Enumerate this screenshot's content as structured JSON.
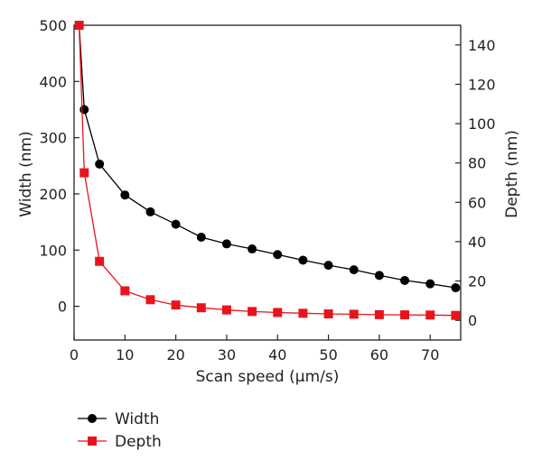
{
  "chart_data": {
    "type": "line",
    "xlabel": "Scan speed (μm/s)",
    "ylabel_left": "Width (nm)",
    "ylabel_right": "Depth (nm)",
    "xlim": [
      0,
      76
    ],
    "ylim_left": [
      -60,
      500
    ],
    "ylim_right": [
      -10,
      150
    ],
    "x_ticks": [
      0,
      10,
      20,
      30,
      40,
      50,
      60,
      70
    ],
    "y_left_ticks": [
      0,
      100,
      200,
      300,
      400,
      500
    ],
    "y_right_ticks": [
      0,
      20,
      40,
      60,
      80,
      100,
      120,
      140
    ],
    "grid": false,
    "legend_position": "below-left",
    "x": [
      1,
      2,
      5,
      10,
      15,
      20,
      25,
      30,
      35,
      40,
      45,
      50,
      55,
      60,
      65,
      70,
      75
    ],
    "series": [
      {
        "name": "Width",
        "axis": "left",
        "color": "#000000",
        "marker": "circle",
        "values": [
          500,
          350,
          253,
          198,
          168,
          146,
          123,
          111,
          102,
          92,
          82,
          73,
          65,
          55,
          46,
          40,
          33
        ]
      },
      {
        "name": "Depth",
        "axis": "right",
        "color": "#e8141c",
        "marker": "square",
        "values": [
          150,
          75,
          30,
          15,
          10.5,
          7.8,
          6.4,
          5.3,
          4.5,
          4.0,
          3.6,
          3.3,
          3.1,
          2.9,
          2.8,
          2.7,
          2.5
        ]
      }
    ]
  }
}
